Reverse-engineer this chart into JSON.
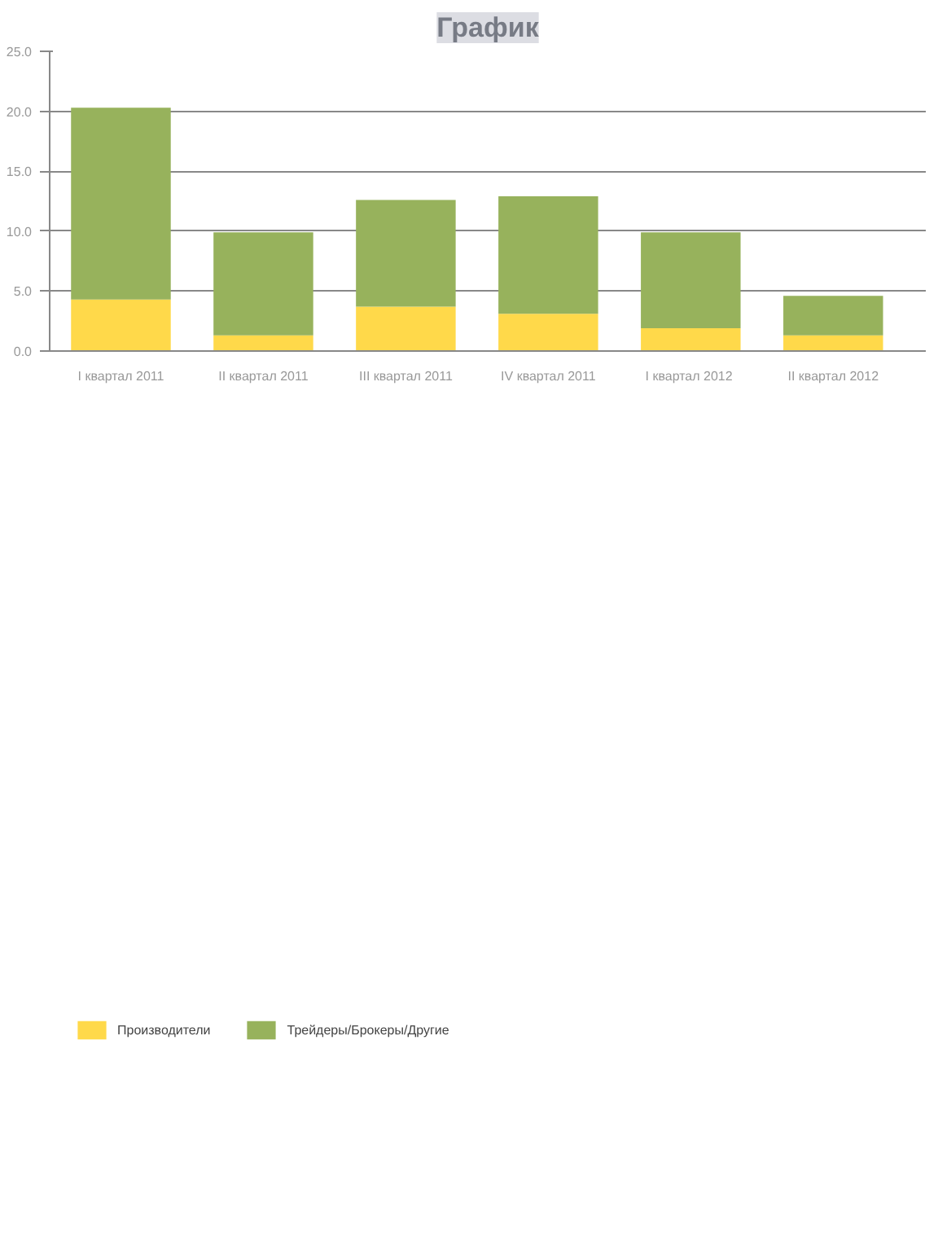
{
  "chart_data": {
    "type": "bar",
    "title": "График",
    "stacked": true,
    "categories": [
      "I квартал 2011",
      "II квартал 2011",
      "III квартал 2011",
      "IV квартал 2011",
      "I  квартал 2012",
      "II квартал 2012"
    ],
    "series": [
      {
        "name": "Производители",
        "color": "#ffd94a",
        "values": [
          4.3,
          1.3,
          3.7,
          3.1,
          1.9,
          1.3
        ]
      },
      {
        "name": "Трейдеры/Брокеры/Другие",
        "color": "#97b25c",
        "values": [
          16.0,
          8.6,
          8.9,
          9.8,
          8.0,
          3.3
        ]
      }
    ],
    "ylim": [
      0,
      25
    ],
    "yticks": [
      {
        "value": 0,
        "label": "0.0"
      },
      {
        "value": 5,
        "label": "5.0"
      },
      {
        "value": 10,
        "label": "10.0"
      },
      {
        "value": 15,
        "label": "15.0"
      },
      {
        "value": 20,
        "label": "20.0"
      },
      {
        "value": 25,
        "label": "25.0"
      }
    ],
    "grid": "y",
    "legend": "bottom left"
  }
}
